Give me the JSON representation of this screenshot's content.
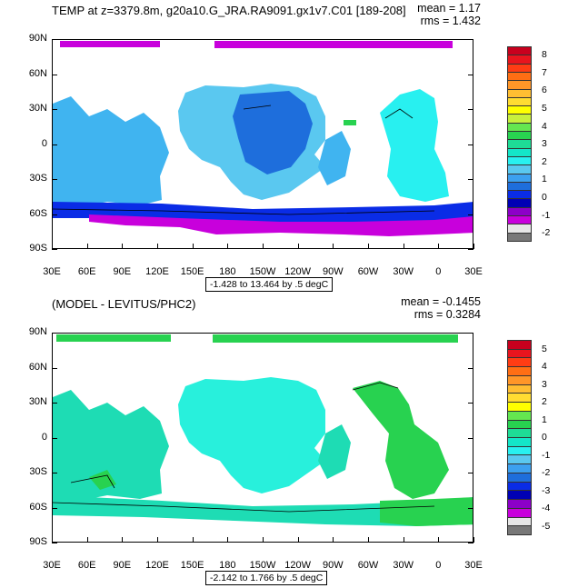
{
  "panels": [
    {
      "title": "TEMP at z=3379.8m, g20a10.G_JRA.RA9091.gx1v7.C01 [189-208]",
      "mean": "mean = 1.17",
      "rms": "rms = 1.432",
      "contour_info": "-1.428 to 13.464 by .5 degC",
      "colorbar": {
        "labels": [
          "8",
          "7",
          "6",
          "5",
          "4",
          "3",
          "2",
          "1",
          "0",
          "-1",
          "-2"
        ],
        "colors": [
          "#c8001e",
          "#e8141e",
          "#ff3c14",
          "#ff6e14",
          "#ff9628",
          "#ffbe32",
          "#ffdc32",
          "#ffff00",
          "#c8f03c",
          "#64e650",
          "#28d250",
          "#1edc96",
          "#14e6c8",
          "#28f0f0",
          "#5ac8f0",
          "#3ca0f0",
          "#1e6edc",
          "#0a2ce6",
          "#0000b4",
          "#8c00c8",
          "#c800dc",
          "#e6e6e6",
          "#787878"
        ]
      },
      "map_colors": {
        "main": "#40b4f0",
        "alt": "#5ac8f0",
        "deep": "#1e6edc",
        "south": "#0a2ce6",
        "polar": "#c800dc",
        "atl": "#28f0f0",
        "green": "#28d250"
      }
    },
    {
      "title": "(MODEL - LEVITUS/PHC2)",
      "mean": "mean = -0.1455",
      "rms": "rms = 0.3284",
      "contour_info": "-2.142 to 1.766 by .5 degC",
      "colorbar": {
        "labels": [
          "5",
          "4",
          "3",
          "2",
          "1",
          "0",
          "-1",
          "-2",
          "-3",
          "-4",
          "-5"
        ],
        "colors": [
          "#c8001e",
          "#e8141e",
          "#ff3c14",
          "#ff6e14",
          "#ff9628",
          "#ffbe32",
          "#ffdc32",
          "#ffff00",
          "#64e650",
          "#28d250",
          "#1edc96",
          "#14e6c8",
          "#28f0f0",
          "#5ac8f0",
          "#3ca0f0",
          "#1e6edc",
          "#0a2ce6",
          "#0000b4",
          "#8c00c8",
          "#c800dc",
          "#e6e6e6",
          "#787878"
        ]
      },
      "map_colors": {
        "main": "#1edcb4",
        "alt": "#28f0dc",
        "deep": "#14e6c8",
        "south": "#1edc96",
        "polar": "#28d250",
        "atl": "#28d250",
        "green": "#64e650"
      }
    }
  ],
  "axes": {
    "lat_labels": [
      "90N",
      "60N",
      "30N",
      "0",
      "30S",
      "60S",
      "90S"
    ],
    "lon_labels": [
      "30E",
      "60E",
      "90E",
      "120E",
      "150E",
      "180",
      "150W",
      "120W",
      "90W",
      "60W",
      "30W",
      "0",
      "30E"
    ]
  }
}
